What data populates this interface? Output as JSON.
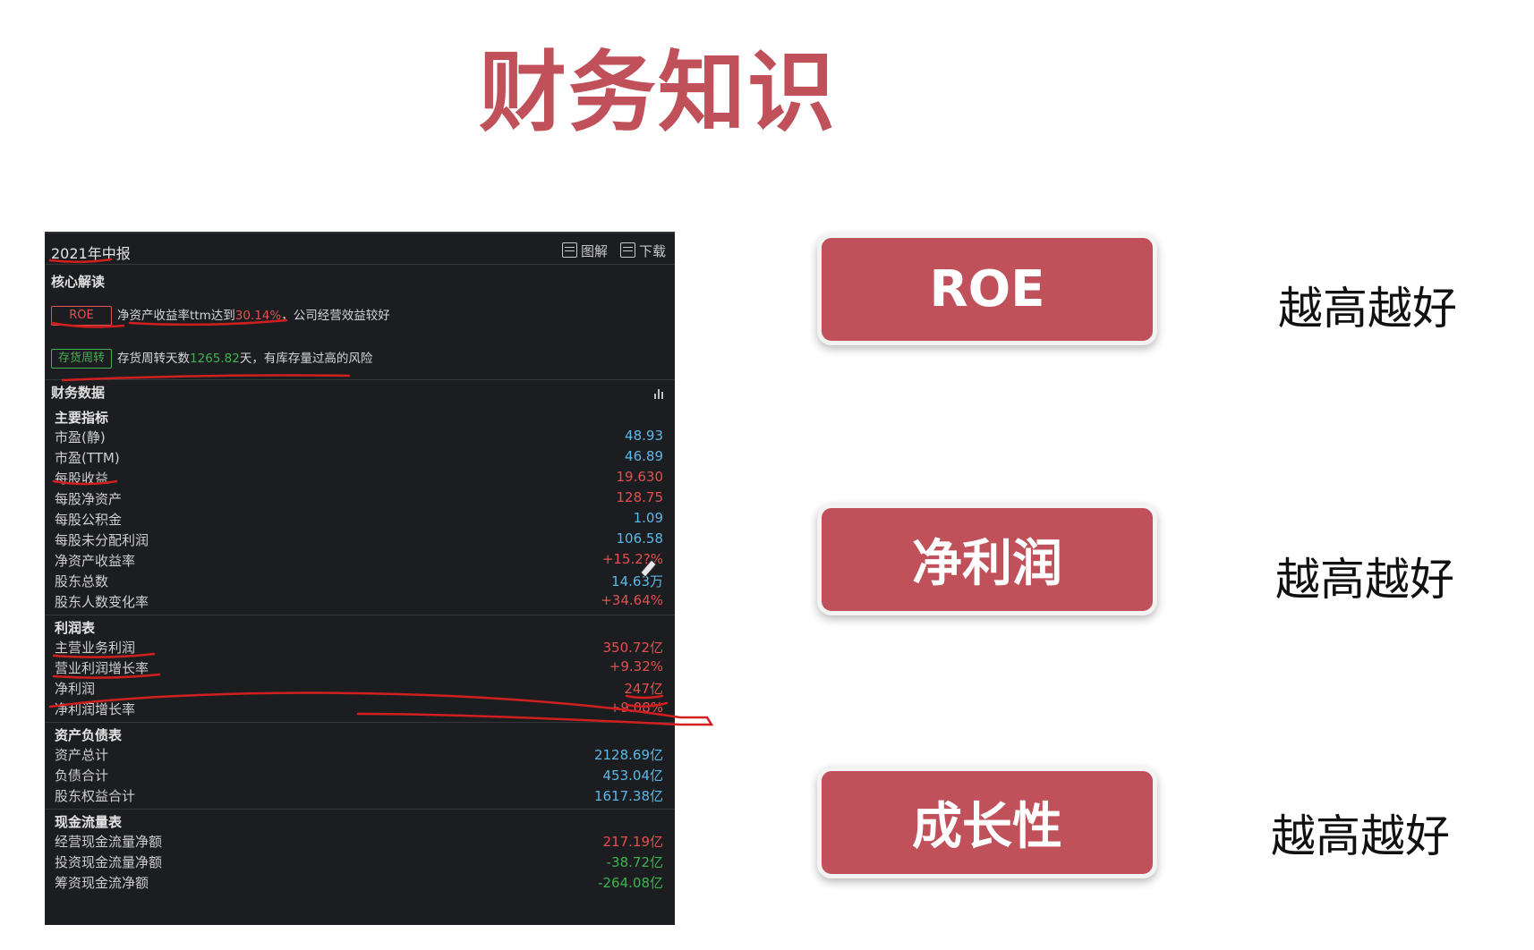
{
  "title": "财务知识",
  "panel": {
    "period": "2021年中报",
    "tools": {
      "diagram": "图解",
      "download": "下载"
    },
    "core_section": "核心解读",
    "insights": [
      {
        "tag": "ROE",
        "prefix": "净资产收益率ttm达到",
        "value": "30.14%",
        "suffix": "，公司经营效益较好"
      },
      {
        "tag": "存货周转",
        "prefix": "存货周转天数",
        "value": "1265.82",
        "suffix": "天，有库存量过高的风险"
      }
    ],
    "fin_section": "财务数据",
    "groups": [
      {
        "title": "主要指标",
        "rows": [
          {
            "label": "市盈(静)",
            "value": "48.93",
            "color": "blue"
          },
          {
            "label": "市盈(TTM)",
            "value": "46.89",
            "color": "blue"
          },
          {
            "label": "每股收益",
            "value": "19.630",
            "color": "red"
          },
          {
            "label": "每股净资产",
            "value": "128.75",
            "color": "red"
          },
          {
            "label": "每股公积金",
            "value": "1.09",
            "color": "blue"
          },
          {
            "label": "每股未分配利润",
            "value": "106.58",
            "color": "blue"
          },
          {
            "label": "净资产收益率",
            "value": "+15.2?%",
            "color": "red"
          },
          {
            "label": "股东总数",
            "value": "14.63万",
            "color": "blue"
          },
          {
            "label": "股东人数变化率",
            "value": "+34.64%",
            "color": "red"
          }
        ]
      },
      {
        "title": "利润表",
        "rows": [
          {
            "label": "主营业务利润",
            "value": "350.72亿",
            "color": "red"
          },
          {
            "label": "营业利润增长率",
            "value": "+9.32%",
            "color": "red"
          },
          {
            "label": "净利润",
            "value": "247亿",
            "color": "red"
          },
          {
            "label": "净利润增长率",
            "value": "+9.08%",
            "color": "red"
          }
        ]
      },
      {
        "title": "资产负债表",
        "rows": [
          {
            "label": "资产总计",
            "value": "2128.69亿",
            "color": "blue"
          },
          {
            "label": "负债合计",
            "value": "453.04亿",
            "color": "blue"
          },
          {
            "label": "股东权益合计",
            "value": "1617.38亿",
            "color": "blue"
          }
        ]
      },
      {
        "title": "现金流量表",
        "rows": [
          {
            "label": "经营现金流量净额",
            "value": "217.19亿",
            "color": "red"
          },
          {
            "label": "投资现金流量净额",
            "value": "-38.72亿",
            "color": "green"
          },
          {
            "label": "筹资现金流净额",
            "value": "-264.08亿",
            "color": "green"
          }
        ]
      }
    ]
  },
  "cards": [
    {
      "label": "ROE",
      "note": "越高越好"
    },
    {
      "label": "净利润",
      "note": "越高越好"
    },
    {
      "label": "成长性",
      "note": "越高越好"
    }
  ],
  "colors": {
    "accent": "#c0505a",
    "panel_bg": "#1c1d21",
    "value_blue": "#5cb8e6",
    "value_red": "#e2504f",
    "value_green": "#3fb34f",
    "annotation": "#d11f1f"
  }
}
